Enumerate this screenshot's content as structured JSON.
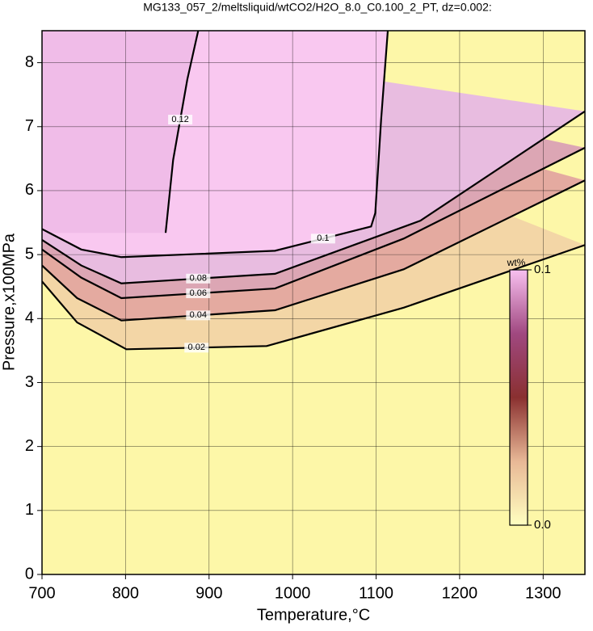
{
  "chart_data": {
    "type": "contour",
    "title": "MG133_057_2/meltsliquid/wtCO2/H2O_8.0_C0.100_2_PT, dz=0.002:",
    "x_label": "Temperature,°C",
    "y_label": "Pressure,x100MPa",
    "xlim": [
      700,
      1350
    ],
    "xticks": [
      700,
      800,
      900,
      1000,
      1100,
      1200,
      1300
    ],
    "ylim": [
      0,
      8.5
    ],
    "yticks": [
      0,
      1,
      2,
      3,
      4,
      5,
      6,
      7,
      8
    ],
    "grid": true,
    "background": "#fdf7a8",
    "contours": [
      {
        "level": 0.02,
        "fill": "#f3d6a6",
        "x": [
          700,
          742,
          801,
          969,
          1133,
          1350
        ],
        "y": [
          4.58,
          3.94,
          3.52,
          3.57,
          4.17,
          5.15
        ]
      },
      {
        "level": 0.04,
        "fill": "#e4aaa0",
        "x": [
          700,
          742,
          795,
          979,
          1133,
          1350
        ],
        "y": [
          4.83,
          4.32,
          3.97,
          4.13,
          4.77,
          6.16
        ]
      },
      {
        "level": 0.06,
        "fill": "#dca6b4",
        "x": [
          700,
          747,
          795,
          979,
          1133,
          1350
        ],
        "y": [
          5.08,
          4.64,
          4.32,
          4.47,
          5.25,
          6.67
        ]
      },
      {
        "level": 0.08,
        "fill": "#e8bce0",
        "x": [
          700,
          747,
          795,
          979,
          1153,
          1350
        ],
        "y": [
          5.23,
          4.83,
          4.55,
          4.7,
          5.53,
          7.24
        ]
      },
      {
        "level": 0.1,
        "fill": "#f9c8f0",
        "x": [
          700,
          747,
          795,
          979,
          1094,
          1099,
          1106,
          1114
        ],
        "y": [
          5.4,
          5.08,
          4.96,
          5.06,
          5.44,
          5.65,
          7.11,
          8.5
        ]
      },
      {
        "level": 0.12,
        "fill": "#f0bce8",
        "x": [
          848,
          857,
          874,
          887
        ],
        "y": [
          5.34,
          6.48,
          7.74,
          8.5
        ]
      }
    ],
    "colorbar_label": "wt%",
    "clim": [
      0,
      0.1
    ],
    "colorbar_ticks": [
      {
        "value": 0,
        "label": "0.0"
      },
      {
        "value": 0.1,
        "label": "0.1"
      }
    ],
    "colorbar_colors": [
      "#ffffc0",
      "#e8b896",
      "#8a3030",
      "#a04880",
      "#f8c0f0"
    ]
  }
}
